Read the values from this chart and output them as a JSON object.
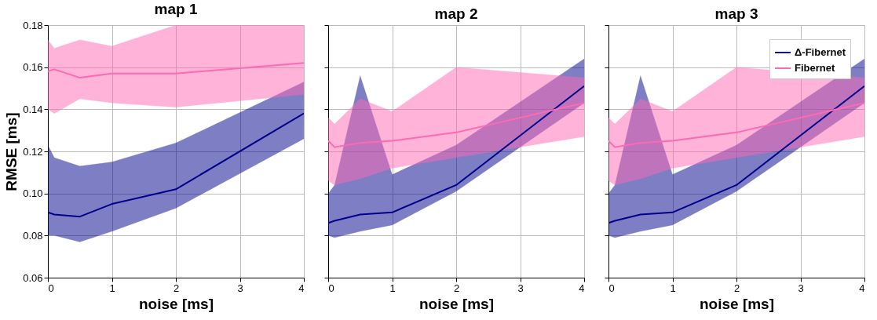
{
  "chart_data": [
    {
      "type": "line",
      "title": "map 1",
      "xlabel": "noise [ms]",
      "ylabel": "RMSE [ms]",
      "x": [
        0,
        0.1,
        0.5,
        1,
        2,
        4
      ],
      "xlim": [
        0,
        4
      ],
      "ylim": [
        0.06,
        0.18
      ],
      "xticks": [
        0,
        1,
        2,
        3,
        4
      ],
      "yticks": [
        0.06,
        0.08,
        {
          "value": 0.1,
          "label": "0.10"
        },
        0.12,
        0.14,
        0.16,
        0.18
      ],
      "grid": true,
      "series": [
        {
          "color": "#00008b",
          "values": [
            0.091,
            0.09,
            0.089,
            0.095,
            0.102,
            0.138
          ],
          "lower": [
            0.08,
            0.08,
            0.077,
            0.082,
            0.093,
            0.126
          ],
          "upper": [
            0.123,
            0.117,
            0.113,
            0.115,
            0.124,
            0.153
          ]
        },
        {
          "color": "#ff69b4",
          "values": [
            0.158,
            0.159,
            0.155,
            0.157,
            0.157,
            0.162
          ],
          "lower": [
            0.14,
            0.138,
            0.145,
            0.143,
            0.141,
            0.147
          ],
          "upper": [
            0.173,
            0.169,
            0.173,
            0.17,
            0.18,
            0.18
          ]
        }
      ]
    },
    {
      "type": "line",
      "title": "map 2",
      "xlabel": "noise [ms]",
      "x": [
        0,
        0.1,
        0.5,
        1,
        2,
        4
      ],
      "xlim": [
        0,
        4
      ],
      "ylim": [
        0.06,
        0.18
      ],
      "xticks": [
        0,
        1,
        2,
        3,
        4
      ],
      "yticks": [
        0.06,
        0.08,
        0.1,
        0.12,
        0.14,
        0.16,
        0.18
      ],
      "grid": true,
      "tick_labels": "x",
      "series": [
        {
          "color": "#00008b",
          "values": [
            0.086,
            0.087,
            0.09,
            0.091,
            0.104,
            0.151
          ],
          "lower": [
            0.08,
            0.079,
            0.082,
            0.085,
            0.101,
            0.143
          ],
          "upper": [
            0.1,
            0.104,
            0.156,
            0.109,
            0.123,
            0.164
          ]
        },
        {
          "color": "#ff69b4",
          "values": [
            0.125,
            0.122,
            0.124,
            0.125,
            0.129,
            0.143
          ],
          "lower": [
            0.106,
            0.104,
            0.107,
            0.112,
            0.117,
            0.127
          ],
          "upper": [
            0.136,
            0.133,
            0.145,
            0.139,
            0.16,
            0.155
          ]
        }
      ]
    },
    {
      "type": "line",
      "title": "map 3",
      "xlabel": "noise [ms]",
      "x": [
        0,
        0.1,
        0.5,
        1,
        2,
        4
      ],
      "xlim": [
        0,
        4
      ],
      "ylim": [
        0.06,
        0.18
      ],
      "xticks": [
        0,
        1,
        2,
        3,
        4
      ],
      "yticks": [
        0.06,
        0.08,
        0.1,
        0.12,
        0.14,
        0.16,
        0.18
      ],
      "grid": true,
      "tick_labels": "x",
      "legend": "top right",
      "series": [
        {
          "name": "Δ-Fibernet",
          "color": "#00008b",
          "values": [
            0.086,
            0.087,
            0.09,
            0.091,
            0.104,
            0.151
          ],
          "lower": [
            0.08,
            0.079,
            0.082,
            0.085,
            0.101,
            0.143
          ],
          "upper": [
            0.1,
            0.104,
            0.156,
            0.109,
            0.123,
            0.164
          ]
        },
        {
          "name": "Fibernet",
          "color": "#ff69b4",
          "values": [
            0.125,
            0.122,
            0.124,
            0.125,
            0.129,
            0.143
          ],
          "lower": [
            0.106,
            0.104,
            0.107,
            0.112,
            0.117,
            0.127
          ],
          "upper": [
            0.136,
            0.133,
            0.145,
            0.139,
            0.16,
            0.155
          ]
        }
      ]
    }
  ]
}
